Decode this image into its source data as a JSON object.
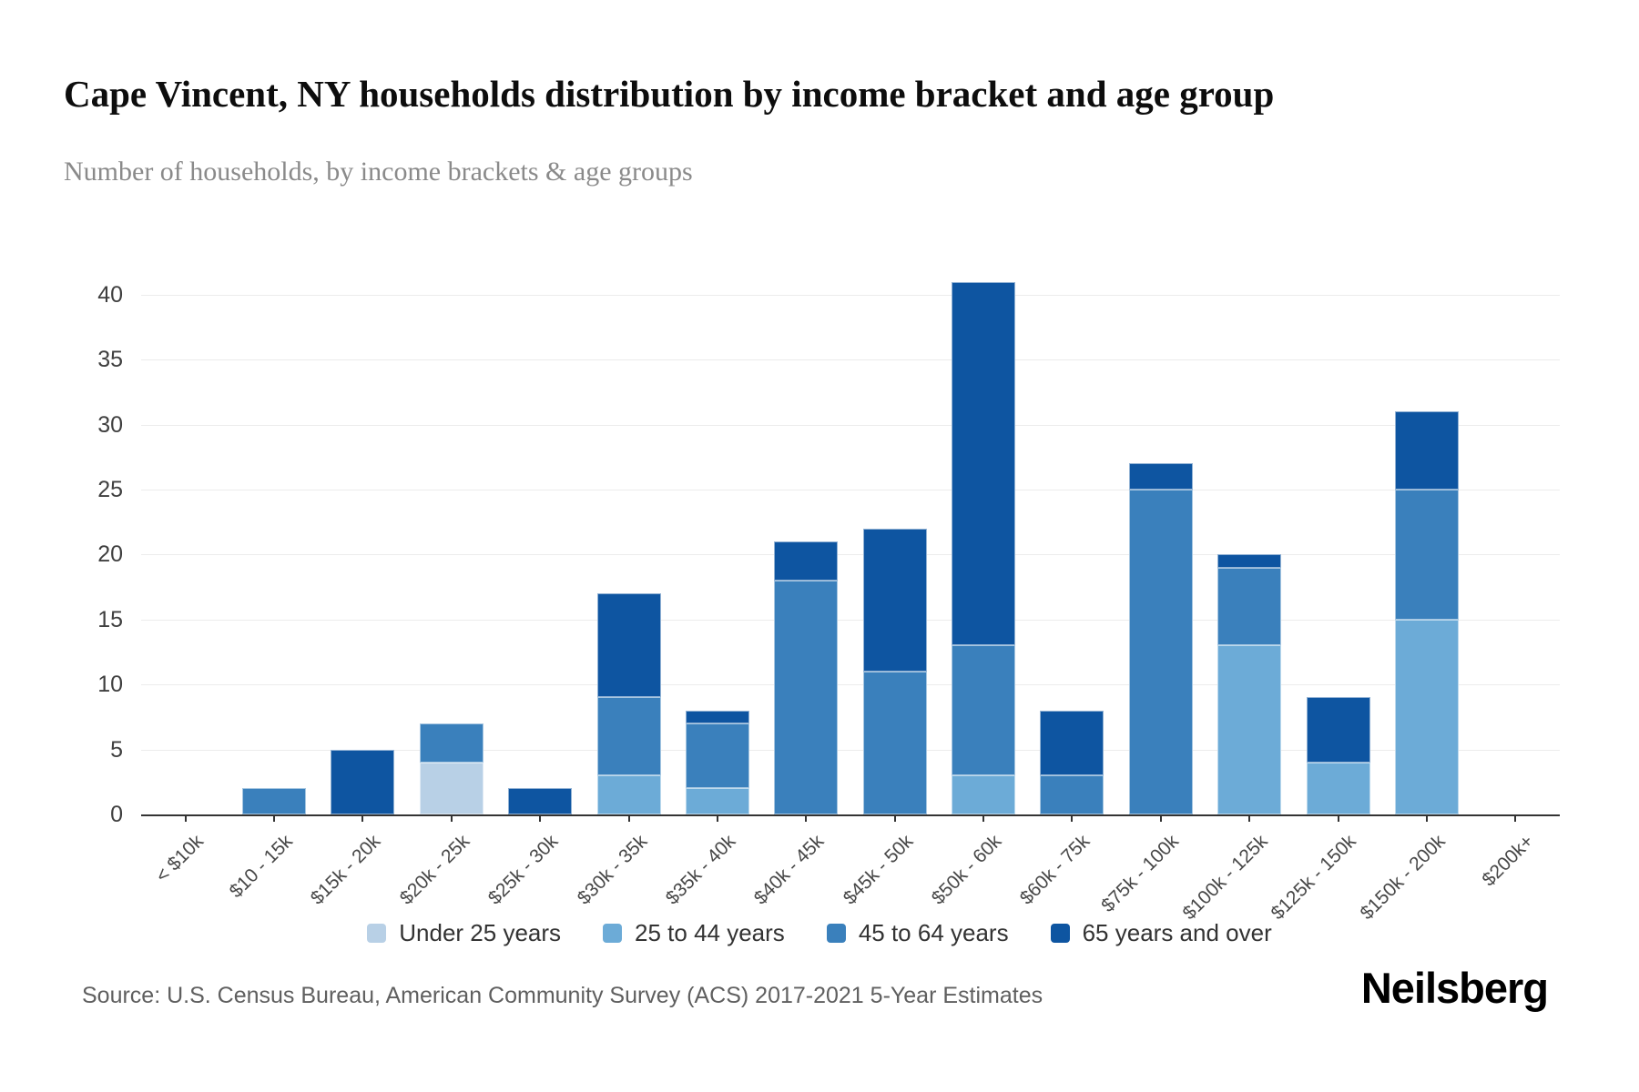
{
  "header": {
    "title": "Cape Vincent, NY households distribution by income bracket and age group",
    "subtitle": "Number of households, by income brackets & age groups"
  },
  "chart_data": {
    "type": "bar",
    "stacked": true,
    "title": "Cape Vincent, NY households distribution by income bracket and age group",
    "xlabel": "",
    "ylabel": "",
    "ylim": [
      0,
      40
    ],
    "yticks": [
      0,
      5,
      10,
      15,
      20,
      25,
      30,
      35,
      40
    ],
    "grid": true,
    "legend_position": "bottom",
    "categories": [
      "< $10k",
      "$10 - 15k",
      "$15k - 20k",
      "$20k - 25k",
      "$25k - 30k",
      "$30k - 35k",
      "$35k - 40k",
      "$40k - 45k",
      "$45k - 50k",
      "$50k - 60k",
      "$60k - 75k",
      "$75k - 100k",
      "$100k - 125k",
      "$125k - 150k",
      "$150k - 200k",
      "$200k+"
    ],
    "series": [
      {
        "name": "Under 25 years",
        "color": "#b8d0e6",
        "values": [
          0,
          0,
          0,
          4,
          0,
          0,
          0,
          0,
          0,
          0,
          0,
          0,
          0,
          0,
          0,
          0
        ]
      },
      {
        "name": "25 to 44 years",
        "color": "#6cabd7",
        "values": [
          0,
          0,
          0,
          0,
          0,
          3,
          2,
          0,
          0,
          3,
          0,
          0,
          13,
          4,
          15,
          0
        ]
      },
      {
        "name": "45 to 64 years",
        "color": "#3a80bc",
        "values": [
          0,
          2,
          0,
          3,
          0,
          6,
          5,
          18,
          11,
          10,
          3,
          25,
          6,
          0,
          10,
          0
        ]
      },
      {
        "name": "65 years and over",
        "color": "#0e55a1",
        "values": [
          0,
          0,
          5,
          0,
          2,
          8,
          1,
          3,
          11,
          28,
          5,
          2,
          1,
          5,
          6,
          0
        ]
      }
    ],
    "totals": [
      0,
      2,
      5,
      7,
      2,
      17,
      8,
      21,
      22,
      41,
      8,
      27,
      20,
      9,
      31,
      0
    ]
  },
  "footer": {
    "source": "Source: U.S. Census Bureau, American Community Survey (ACS) 2017-2021 5-Year Estimates",
    "brand": "Neilsberg"
  }
}
